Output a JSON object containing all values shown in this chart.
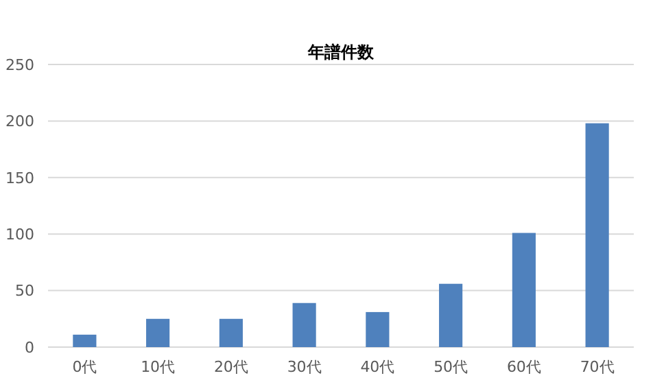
{
  "chart_data": {
    "type": "bar",
    "title": "年譜件数",
    "categories": [
      "0代",
      "10代",
      "20代",
      "30代",
      "40代",
      "50代",
      "60代",
      "70代"
    ],
    "values": [
      11,
      25,
      25,
      39,
      31,
      56,
      101,
      198
    ],
    "color": "#4f81bd",
    "ylim": [
      0,
      250
    ],
    "yticks": [
      0,
      50,
      100,
      150,
      200,
      250
    ],
    "grid": "y"
  }
}
